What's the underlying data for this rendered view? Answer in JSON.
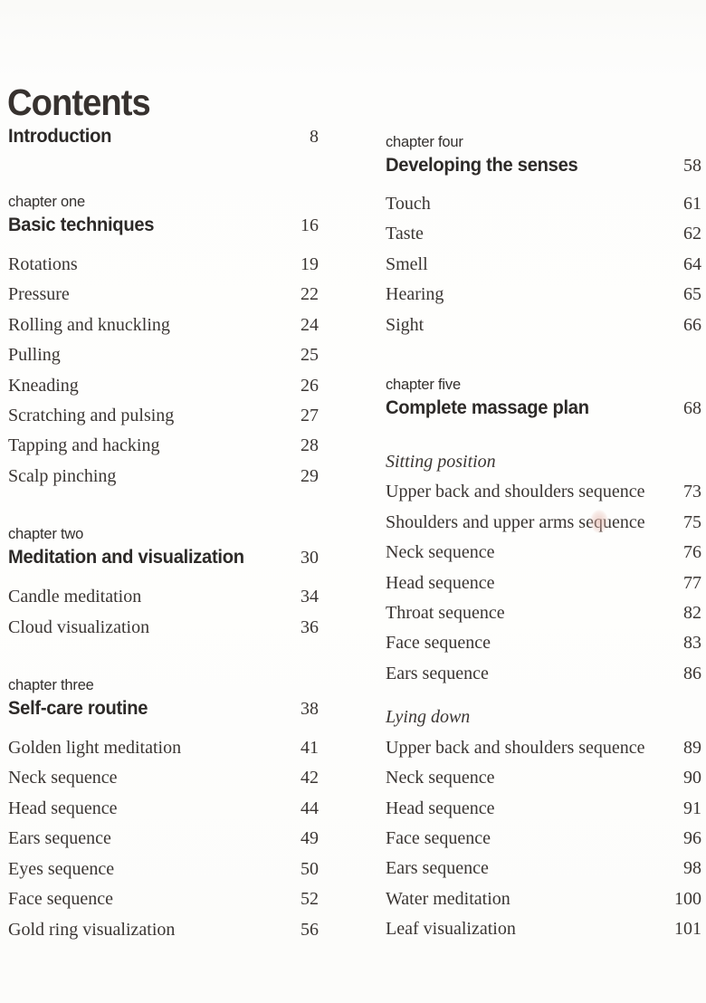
{
  "page": {
    "title": "Contents",
    "background_color": "#fdfdfc",
    "heading_color": "#37322f",
    "text_color": "#3b3633"
  },
  "toc": {
    "intro": {
      "label": "Introduction",
      "page": "8"
    },
    "chapters": [
      {
        "kicker": "chapter one",
        "title": "Basic techniques",
        "page": "16",
        "items": [
          {
            "label": "Rotations",
            "page": "19"
          },
          {
            "label": "Pressure",
            "page": "22"
          },
          {
            "label": "Rolling and knuckling",
            "page": "24"
          },
          {
            "label": "Pulling",
            "page": "25"
          },
          {
            "label": "Kneading",
            "page": "26"
          },
          {
            "label": "Scratching and pulsing",
            "page": "27"
          },
          {
            "label": "Tapping and hacking",
            "page": "28"
          },
          {
            "label": "Scalp pinching",
            "page": "29"
          }
        ]
      },
      {
        "kicker": "chapter two",
        "title": "Meditation and visualization",
        "page": "30",
        "items": [
          {
            "label": "Candle meditation",
            "page": "34"
          },
          {
            "label": "Cloud visualization",
            "page": "36"
          }
        ]
      },
      {
        "kicker": "chapter three",
        "title": "Self-care routine",
        "page": "38",
        "items": [
          {
            "label": "Golden light meditation",
            "page": "41"
          },
          {
            "label": "Neck sequence",
            "page": "42"
          },
          {
            "label": "Head sequence",
            "page": "44"
          },
          {
            "label": "Ears sequence",
            "page": "49"
          },
          {
            "label": "Eyes sequence",
            "page": "50"
          },
          {
            "label": "Face sequence",
            "page": "52"
          },
          {
            "label": "Gold ring visualization",
            "page": "56"
          }
        ]
      },
      {
        "kicker": "chapter four",
        "title": "Developing the senses",
        "page": "58",
        "items": [
          {
            "label": "Touch",
            "page": "61"
          },
          {
            "label": "Taste",
            "page": "62"
          },
          {
            "label": "Smell",
            "page": "64"
          },
          {
            "label": "Hearing",
            "page": "65"
          },
          {
            "label": "Sight",
            "page": "66"
          }
        ]
      },
      {
        "kicker": "chapter five",
        "title": "Complete massage plan",
        "page": "68",
        "groups": [
          {
            "heading": "Sitting position",
            "items": [
              {
                "label": "Upper back and shoulders sequence",
                "page": "73"
              },
              {
                "label": "Shoulders and upper arms sequence",
                "page": "75"
              },
              {
                "label": "Neck sequence",
                "page": "76"
              },
              {
                "label": "Head sequence",
                "page": "77"
              },
              {
                "label": "Throat sequence",
                "page": "82"
              },
              {
                "label": "Face sequence",
                "page": "83"
              },
              {
                "label": "Ears sequence",
                "page": "86"
              }
            ]
          },
          {
            "heading": "Lying down",
            "items": [
              {
                "label": "Upper back and shoulders sequence",
                "page": "89"
              },
              {
                "label": "Neck sequence",
                "page": "90"
              },
              {
                "label": "Head sequence",
                "page": "91"
              },
              {
                "label": "Face sequence",
                "page": "96"
              },
              {
                "label": "Ears sequence",
                "page": "98"
              },
              {
                "label": "Water meditation",
                "page": "100"
              },
              {
                "label": "Leaf visualization",
                "page": "101"
              }
            ]
          }
        ]
      }
    ]
  }
}
